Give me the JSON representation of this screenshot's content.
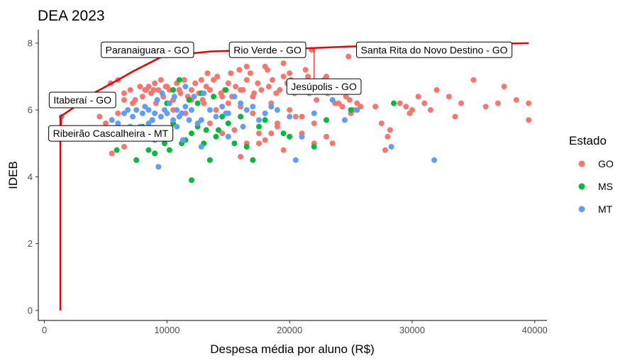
{
  "chart_data": {
    "type": "scatter",
    "title": "DEA 2023",
    "xlabel": "Despesa média por aluno (R$)",
    "ylabel": "IDEB",
    "xlim": [
      -500,
      41000
    ],
    "ylim": [
      -0.3,
      8.4
    ],
    "x_ticks": [
      0,
      10000,
      20000,
      30000,
      40000
    ],
    "x_tick_labels": [
      "0",
      "10000",
      "20000",
      "30000",
      "40000"
    ],
    "y_ticks": [
      0,
      2,
      4,
      6,
      8
    ],
    "y_tick_labels": [
      "0",
      "2",
      "4",
      "6",
      "8"
    ],
    "grid": false,
    "legend": {
      "title": "Estado",
      "position": "right"
    },
    "series": [
      {
        "name": "GO",
        "color": "#F8766D",
        "points": [
          [
            5400,
            6.8
          ],
          [
            6000,
            6.9
          ],
          [
            6500,
            6.5
          ],
          [
            7000,
            6.6
          ],
          [
            7400,
            6.3
          ],
          [
            7800,
            6.7
          ],
          [
            8000,
            6.4
          ],
          [
            8300,
            6.6
          ],
          [
            8500,
            6.7
          ],
          [
            8700,
            6.5
          ],
          [
            8900,
            6.6
          ],
          [
            9100,
            6.2
          ],
          [
            9300,
            6.6
          ],
          [
            9500,
            6.9
          ],
          [
            9700,
            6.4
          ],
          [
            9900,
            6.7
          ],
          [
            10200,
            6.6
          ],
          [
            10500,
            6.3
          ],
          [
            10800,
            6.8
          ],
          [
            11100,
            6.5
          ],
          [
            11400,
            6.9
          ],
          [
            11700,
            6.4
          ],
          [
            12000,
            6.6
          ],
          [
            12300,
            6.8
          ],
          [
            12600,
            6.5
          ],
          [
            12900,
            6.3
          ],
          [
            13200,
            6.7
          ],
          [
            13500,
            6.6
          ],
          [
            13800,
            6.9
          ],
          [
            14100,
            7.0
          ],
          [
            14400,
            6.5
          ],
          [
            14700,
            6.6
          ],
          [
            15000,
            6.8
          ],
          [
            15300,
            6.4
          ],
          [
            15600,
            6.7
          ],
          [
            15900,
            7.2
          ],
          [
            16200,
            6.6
          ],
          [
            16500,
            6.9
          ],
          [
            16800,
            7.1
          ],
          [
            17100,
            6.5
          ],
          [
            17400,
            6.8
          ],
          [
            17700,
            6.6
          ],
          [
            18000,
            7.3
          ],
          [
            18300,
            6.7
          ],
          [
            18600,
            6.9
          ],
          [
            18900,
            6.5
          ],
          [
            19200,
            6.6
          ],
          [
            19500,
            7.0
          ],
          [
            19800,
            6.8
          ],
          [
            20100,
            6.9
          ],
          [
            20400,
            6.5
          ],
          [
            20700,
            6.6
          ],
          [
            21000,
            6.8
          ],
          [
            21300,
            7.2
          ],
          [
            21600,
            6.5
          ],
          [
            21900,
            6.7
          ],
          [
            22200,
            6.3
          ],
          [
            22500,
            6.6
          ],
          [
            22800,
            6.9
          ],
          [
            23100,
            6.5
          ],
          [
            23400,
            6.6
          ],
          [
            23700,
            6.2
          ],
          [
            24000,
            6.7
          ],
          [
            24300,
            6.1
          ],
          [
            24600,
            6.4
          ],
          [
            24900,
            6.3
          ],
          [
            25200,
            6.0
          ],
          [
            25500,
            6.2
          ],
          [
            25800,
            6.1
          ],
          [
            13000,
            6.2
          ],
          [
            14000,
            6.0
          ],
          [
            15000,
            6.2
          ],
          [
            16000,
            6.1
          ],
          [
            17000,
            5.9
          ],
          [
            18000,
            5.7
          ],
          [
            19000,
            5.6
          ],
          [
            20000,
            6.0
          ],
          [
            21000,
            5.8
          ],
          [
            12000,
            6.3
          ],
          [
            11500,
            5.9
          ],
          [
            10500,
            6.0
          ],
          [
            9500,
            5.8
          ],
          [
            15500,
            5.4
          ],
          [
            17500,
            5.3
          ],
          [
            19000,
            5.5
          ],
          [
            16500,
            5.0
          ],
          [
            18000,
            5.1
          ],
          [
            14500,
            5.3
          ],
          [
            13500,
            5.6
          ],
          [
            20500,
            5.8
          ],
          [
            22000,
            5.6
          ],
          [
            23000,
            5.2
          ],
          [
            24000,
            6.2
          ],
          [
            25000,
            5.9
          ],
          [
            27000,
            6.1
          ],
          [
            27500,
            5.6
          ],
          [
            28000,
            5.2
          ],
          [
            28200,
            5.4
          ],
          [
            27800,
            4.8
          ],
          [
            29000,
            6.2
          ],
          [
            29500,
            6.1
          ],
          [
            29800,
            5.9
          ],
          [
            30000,
            6.0
          ],
          [
            30500,
            6.4
          ],
          [
            31000,
            6.2
          ],
          [
            31500,
            6.0
          ],
          [
            32000,
            6.6
          ],
          [
            33000,
            6.4
          ],
          [
            33500,
            5.8
          ],
          [
            34000,
            6.2
          ],
          [
            35000,
            6.9
          ],
          [
            36000,
            6.1
          ],
          [
            37000,
            6.2
          ],
          [
            37500,
            6.7
          ],
          [
            38500,
            6.3
          ],
          [
            39500,
            6.2
          ],
          [
            39500,
            5.7
          ],
          [
            22000,
            5.0
          ],
          [
            19500,
            4.8
          ],
          [
            17500,
            5.0
          ],
          [
            16000,
            4.6
          ],
          [
            18500,
            5.3
          ],
          [
            21000,
            5.3
          ],
          [
            23500,
            5.0
          ],
          [
            14500,
            6.4
          ],
          [
            16000,
            6.6
          ],
          [
            17000,
            6.4
          ],
          [
            18500,
            6.2
          ],
          [
            13300,
            7.1
          ],
          [
            12800,
            6.9
          ],
          [
            19500,
            7.4
          ],
          [
            18200,
            7.2
          ],
          [
            16500,
            7.3
          ],
          [
            15200,
            7.1
          ],
          [
            20000,
            7.1
          ],
          [
            21500,
            7.0
          ],
          [
            23000,
            7.0
          ],
          [
            7200,
            6.2
          ],
          [
            6500,
            6.3
          ],
          [
            6000,
            5.9
          ],
          [
            7500,
            5.3
          ],
          [
            8000,
            5.2
          ],
          [
            6500,
            4.9
          ],
          [
            5500,
            4.7
          ],
          [
            4500,
            5.8
          ],
          [
            5000,
            5.6
          ],
          [
            21800,
            7.8
          ],
          [
            24800,
            7.6
          ],
          [
            8200,
            6.6
          ],
          [
            9000,
            6.8
          ],
          [
            10000,
            6.7
          ],
          [
            11000,
            6.6
          ]
        ]
      },
      {
        "name": "MS",
        "color": "#00BA38",
        "points": [
          [
            5700,
            5.3
          ],
          [
            5900,
            4.8
          ],
          [
            7500,
            4.5
          ],
          [
            8500,
            4.8
          ],
          [
            9000,
            4.7
          ],
          [
            9500,
            5.3
          ],
          [
            10000,
            6.2
          ],
          [
            10500,
            5.6
          ],
          [
            11000,
            6.9
          ],
          [
            11500,
            5.1
          ],
          [
            12000,
            3.9
          ],
          [
            12500,
            5.5
          ],
          [
            13000,
            5.0
          ],
          [
            13500,
            4.5
          ],
          [
            14000,
            5.2
          ],
          [
            14500,
            5.8
          ],
          [
            15000,
            5.6
          ],
          [
            15500,
            5.0
          ],
          [
            16000,
            5.8
          ],
          [
            16500,
            4.9
          ],
          [
            17000,
            4.5
          ],
          [
            17500,
            5.5
          ],
          [
            18000,
            5.7
          ],
          [
            12800,
            6.5
          ],
          [
            13200,
            5.4
          ],
          [
            14200,
            5.4
          ],
          [
            11200,
            5.0
          ],
          [
            10200,
            4.8
          ],
          [
            9200,
            5.4
          ],
          [
            8800,
            5.7
          ],
          [
            19500,
            5.3
          ],
          [
            20000,
            5.2
          ],
          [
            22000,
            4.9
          ],
          [
            23000,
            5.7
          ],
          [
            25000,
            6.0
          ],
          [
            28500,
            6.2
          ],
          [
            10500,
            6.6
          ],
          [
            11800,
            6.3
          ],
          [
            12500,
            6.2
          ],
          [
            13800,
            6.4
          ],
          [
            14800,
            6.6
          ],
          [
            9800,
            5.0
          ],
          [
            8000,
            5.5
          ],
          [
            7800,
            5.2
          ],
          [
            12000,
            5.3
          ]
        ]
      },
      {
        "name": "MT",
        "color": "#619CFF",
        "points": [
          [
            1400,
            5.8
          ],
          [
            3000,
            5.3
          ],
          [
            3500,
            5.4
          ],
          [
            5500,
            5.7
          ],
          [
            6000,
            5.6
          ],
          [
            6500,
            5.9
          ],
          [
            6800,
            6.0
          ],
          [
            7200,
            5.8
          ],
          [
            7500,
            6.0
          ],
          [
            7800,
            5.5
          ],
          [
            8000,
            5.9
          ],
          [
            8200,
            6.1
          ],
          [
            8500,
            6.0
          ],
          [
            8800,
            5.7
          ],
          [
            9000,
            5.9
          ],
          [
            9200,
            6.3
          ],
          [
            9500,
            5.8
          ],
          [
            9800,
            6.0
          ],
          [
            10000,
            5.9
          ],
          [
            10200,
            6.2
          ],
          [
            10500,
            5.7
          ],
          [
            10800,
            6.0
          ],
          [
            11000,
            5.8
          ],
          [
            11200,
            5.9
          ],
          [
            11500,
            6.1
          ],
          [
            11800,
            5.7
          ],
          [
            12000,
            6.0
          ],
          [
            12500,
            5.6
          ],
          [
            13000,
            6.5
          ],
          [
            13500,
            6.0
          ],
          [
            14000,
            5.8
          ],
          [
            14500,
            6.1
          ],
          [
            15000,
            5.9
          ],
          [
            15500,
            6.4
          ],
          [
            16000,
            6.2
          ],
          [
            16500,
            6.0
          ],
          [
            17000,
            6.1
          ],
          [
            17500,
            5.7
          ],
          [
            18000,
            5.9
          ],
          [
            18500,
            6.1
          ],
          [
            19000,
            6.0
          ],
          [
            7000,
            5.5
          ],
          [
            8300,
            5.3
          ],
          [
            9300,
            4.3
          ],
          [
            10300,
            5.4
          ],
          [
            11300,
            5.1
          ],
          [
            11500,
            6.7
          ],
          [
            12200,
            6.4
          ],
          [
            12800,
            4.9
          ],
          [
            9600,
            6.5
          ],
          [
            10600,
            6.4
          ],
          [
            20000,
            5.8
          ],
          [
            20500,
            4.5
          ],
          [
            21000,
            5.2
          ],
          [
            22000,
            5.9
          ],
          [
            23500,
            6.3
          ],
          [
            24500,
            5.7
          ],
          [
            25500,
            6.0
          ],
          [
            28300,
            4.9
          ],
          [
            31800,
            4.5
          ],
          [
            16200,
            5.5
          ],
          [
            15000,
            5.2
          ],
          [
            9000,
            5.1
          ],
          [
            8500,
            5.6
          ],
          [
            10800,
            5.5
          ],
          [
            12800,
            5.7
          ],
          [
            14800,
            5.9
          ]
        ]
      }
    ],
    "frontier": {
      "color": "#EE0000",
      "points": [
        [
          1300,
          0
        ],
        [
          1300,
          5.8
        ],
        [
          2500,
          6.1
        ],
        [
          4000,
          6.5
        ],
        [
          6000,
          6.9
        ],
        [
          7200,
          7.15
        ],
        [
          9600,
          7.6
        ],
        [
          13500,
          7.75
        ],
        [
          21800,
          7.85
        ],
        [
          24800,
          7.9
        ],
        [
          39500,
          8.0
        ]
      ]
    },
    "annotations": [
      {
        "label": "Paranaiguara - GO",
        "anchor": [
          8400,
          7.8
        ],
        "point": [
          8400,
          7.8
        ]
      },
      {
        "label": "Rio Verde - GO",
        "anchor": [
          18200,
          7.8
        ],
        "point": [
          18200,
          7.8
        ]
      },
      {
        "label": "Santa Rita do Novo Destino - GO",
        "anchor": [
          31800,
          7.8
        ],
        "point": [
          31800,
          7.85
        ]
      },
      {
        "label": "Jesúpolis - GO",
        "anchor": [
          22800,
          6.7
        ],
        "point": [
          22000,
          7.85
        ]
      },
      {
        "label": "Itaberaí - GO",
        "anchor": [
          3100,
          6.3
        ],
        "point": [
          3100,
          6.3
        ]
      },
      {
        "label": "Ribeirão Cascalheira - MT",
        "anchor": [
          5400,
          5.3
        ],
        "point": [
          1400,
          5.8
        ]
      }
    ]
  }
}
